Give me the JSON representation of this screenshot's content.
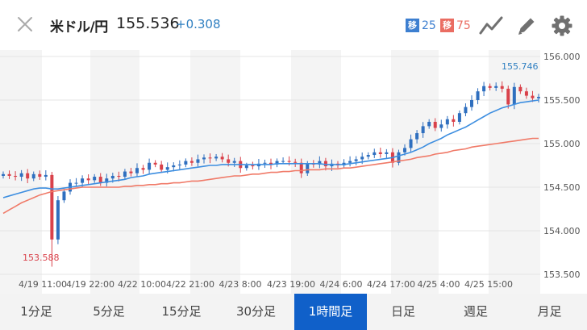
{
  "header": {
    "pair": "米ドル/円",
    "price": "155.536",
    "change": "+0.308",
    "ma_short": {
      "tag": "移",
      "value": "25"
    },
    "ma_long": {
      "tag": "移",
      "value": "75"
    },
    "icons": [
      "close-icon",
      "trendline-icon",
      "pen-icon",
      "gear-icon"
    ]
  },
  "chart_data": {
    "type": "candlestick",
    "x_ticks": [
      "4/19 11:00",
      "4/19 22:00",
      "4/22 10:00",
      "4/22 21:00",
      "4/23 8:00",
      "4/23 19:00",
      "4/24 6:00",
      "4/24 17:00",
      "4/25 4:00",
      "4/25 15:00"
    ],
    "y_ticks": [
      "156.000",
      "155.500",
      "155.000",
      "154.500",
      "154.000",
      "153.500"
    ],
    "ylim": [
      153.5,
      156.0
    ],
    "high_label": "155.746",
    "low_label": "153.588",
    "grid": true,
    "colors": {
      "up": "#2f6fbf",
      "down": "#d9414a",
      "ma_short": "#3d8ee0",
      "ma_long": "#f07a68"
    },
    "closes": [
      154.65,
      154.63,
      154.62,
      154.66,
      154.6,
      154.65,
      154.62,
      154.64,
      153.9,
      154.35,
      154.45,
      154.55,
      154.55,
      154.6,
      154.58,
      154.62,
      154.55,
      154.6,
      154.63,
      154.62,
      154.68,
      154.66,
      154.72,
      154.7,
      154.78,
      154.76,
      154.7,
      154.73,
      154.75,
      154.76,
      154.8,
      154.78,
      154.82,
      154.84,
      154.83,
      154.85,
      154.82,
      154.78,
      154.8,
      154.72,
      154.75,
      154.74,
      154.77,
      154.78,
      154.76,
      154.8,
      154.8,
      154.79,
      154.78,
      154.66,
      154.77,
      154.76,
      154.8,
      154.74,
      154.77,
      154.75,
      154.78,
      154.8,
      154.82,
      154.85,
      154.87,
      154.9,
      154.88,
      154.9,
      154.78,
      154.9,
      154.95,
      155.05,
      155.12,
      155.2,
      155.25,
      155.18,
      155.22,
      155.28,
      155.25,
      155.35,
      155.42,
      155.5,
      155.6,
      155.66,
      155.64,
      155.66,
      155.63,
      155.45,
      155.65,
      155.6,
      155.55,
      155.52,
      155.536
    ],
    "ma25": [
      154.38,
      154.4,
      154.42,
      154.44,
      154.46,
      154.48,
      154.49,
      154.49,
      154.48,
      154.48,
      154.49,
      154.5,
      154.51,
      154.52,
      154.53,
      154.54,
      154.55,
      154.56,
      154.57,
      154.58,
      154.59,
      154.61,
      154.62,
      154.63,
      154.65,
      154.66,
      154.67,
      154.68,
      154.69,
      154.7,
      154.71,
      154.72,
      154.73,
      154.74,
      154.75,
      154.75,
      154.76,
      154.76,
      154.76,
      154.76,
      154.76,
      154.76,
      154.76,
      154.76,
      154.76,
      154.77,
      154.77,
      154.77,
      154.77,
      154.77,
      154.77,
      154.77,
      154.77,
      154.76,
      154.76,
      154.76,
      154.76,
      154.77,
      154.78,
      154.79,
      154.8,
      154.81,
      154.82,
      154.83,
      154.84,
      154.86,
      154.88,
      154.9,
      154.93,
      154.96,
      155.0,
      155.03,
      155.06,
      155.1,
      155.13,
      155.16,
      155.19,
      155.23,
      155.27,
      155.31,
      155.35,
      155.38,
      155.41,
      155.43,
      155.45,
      155.47,
      155.48,
      155.49,
      155.5
    ],
    "ma75": [
      154.2,
      154.24,
      154.28,
      154.32,
      154.35,
      154.38,
      154.41,
      154.43,
      154.45,
      154.46,
      154.47,
      154.48,
      154.49,
      154.5,
      154.5,
      154.5,
      154.5,
      154.5,
      154.5,
      154.5,
      154.51,
      154.51,
      154.52,
      154.52,
      154.53,
      154.53,
      154.54,
      154.54,
      154.55,
      154.55,
      154.56,
      154.57,
      154.57,
      154.58,
      154.59,
      154.6,
      154.61,
      154.62,
      154.63,
      154.63,
      154.64,
      154.65,
      154.65,
      154.66,
      154.67,
      154.67,
      154.68,
      154.68,
      154.69,
      154.69,
      154.7,
      154.7,
      154.7,
      154.71,
      154.71,
      154.71,
      154.72,
      154.72,
      154.73,
      154.74,
      154.75,
      154.76,
      154.77,
      154.78,
      154.79,
      154.8,
      154.81,
      154.82,
      154.84,
      154.85,
      154.86,
      154.88,
      154.89,
      154.9,
      154.92,
      154.93,
      154.94,
      154.96,
      154.97,
      154.98,
      154.99,
      155.0,
      155.01,
      155.02,
      155.03,
      155.04,
      155.05,
      155.06,
      155.06
    ]
  },
  "tabs": [
    {
      "label": "1分足",
      "active": false
    },
    {
      "label": "5分足",
      "active": false
    },
    {
      "label": "15分足",
      "active": false
    },
    {
      "label": "30分足",
      "active": false
    },
    {
      "label": "1時間足",
      "active": true
    },
    {
      "label": "日足",
      "active": false
    },
    {
      "label": "週足",
      "active": false
    },
    {
      "label": "月足",
      "active": false
    }
  ]
}
